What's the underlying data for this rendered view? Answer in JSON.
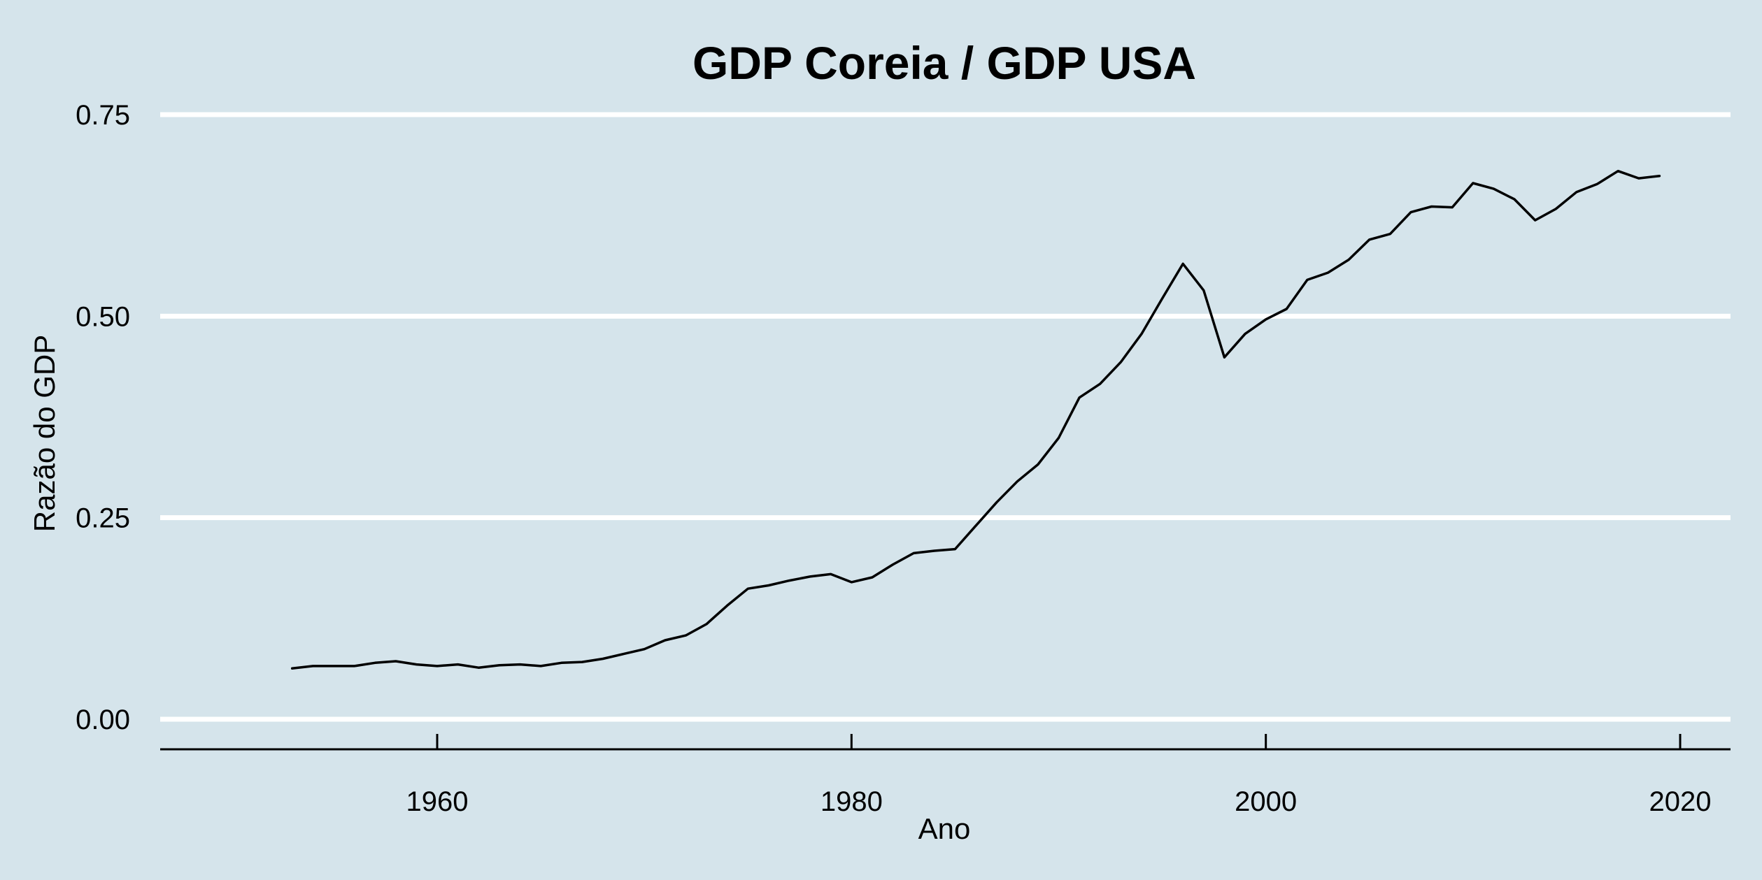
{
  "chart_data": {
    "type": "line",
    "title": "GDP Coreia / GDP USA",
    "xlabel": "Ano",
    "ylabel": "Razão do GDP",
    "xlim": [
      1946.7,
      2022.8
    ],
    "ylim": [
      -0.035,
      0.75
    ],
    "x_ticks": [
      {
        "value": 1960,
        "label": "1960"
      },
      {
        "value": 1980,
        "label": "1980"
      },
      {
        "value": 2000,
        "label": "2000"
      },
      {
        "value": 2020,
        "label": "2020"
      }
    ],
    "y_ticks": [
      {
        "value": 0.0,
        "label": "0.00"
      },
      {
        "value": 0.25,
        "label": "0.25"
      },
      {
        "value": 0.5,
        "label": "0.50"
      },
      {
        "value": 0.75,
        "label": "0.75"
      }
    ],
    "grid": "horizontal major gridlines",
    "legend": "none",
    "background_color": "#d5e4eb",
    "line_color": "#000000",
    "grid_color": "#ffffff",
    "series": [
      {
        "x": [
          1953,
          1954,
          1955,
          1956,
          1957,
          1958,
          1959,
          1960,
          1961,
          1962,
          1963,
          1964,
          1965,
          1966,
          1967,
          1968,
          1969,
          1970,
          1971,
          1972,
          1973,
          1974,
          1975,
          1976,
          1977,
          1978,
          1979,
          1980,
          1981,
          1982,
          1983,
          1984,
          1985,
          1986,
          1987,
          1988,
          1989,
          1990,
          1991,
          1992,
          1993,
          1994,
          1995,
          1996,
          1997,
          1998,
          1999,
          2000,
          2001,
          2002,
          2003,
          2004,
          2005,
          2006,
          2007,
          2008,
          2009,
          2010,
          2011,
          2012,
          2013,
          2014,
          2015,
          2016,
          2017,
          2018,
          2019
        ],
        "values": [
          0.063,
          0.066,
          0.066,
          0.066,
          0.07,
          0.072,
          0.068,
          0.066,
          0.068,
          0.064,
          0.067,
          0.068,
          0.066,
          0.07,
          0.071,
          0.075,
          0.081,
          0.087,
          0.098,
          0.104,
          0.118,
          0.141,
          0.162,
          0.166,
          0.172,
          0.177,
          0.18,
          0.17,
          0.176,
          0.192,
          0.206,
          0.209,
          0.211,
          0.24,
          0.269,
          0.295,
          0.316,
          0.349,
          0.399,
          0.416,
          0.443,
          0.478,
          0.522,
          0.565,
          0.532,
          0.449,
          0.478,
          0.496,
          0.509,
          0.545,
          0.554,
          0.57,
          0.595,
          0.602,
          0.629,
          0.636,
          0.635,
          0.665,
          0.658,
          0.645,
          0.619,
          0.633,
          0.654,
          0.664,
          0.68,
          0.671,
          0.674
        ]
      }
    ]
  }
}
